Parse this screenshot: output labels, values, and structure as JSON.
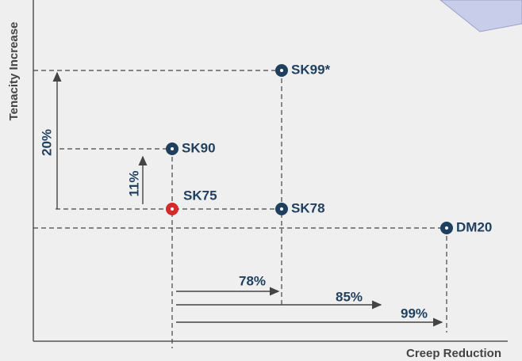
{
  "axes": {
    "y_label": "Tenacity Increase",
    "x_label": "Creep Reduction"
  },
  "points": [
    {
      "label": "SK99*"
    },
    {
      "label": "SK90"
    },
    {
      "label": "SK75"
    },
    {
      "label": "SK78"
    },
    {
      "label": "DM20"
    }
  ],
  "arrows": [
    {
      "label": "20%"
    },
    {
      "label": "11%"
    },
    {
      "label": "78%"
    },
    {
      "label": "85%"
    },
    {
      "label": "99%"
    }
  ]
}
